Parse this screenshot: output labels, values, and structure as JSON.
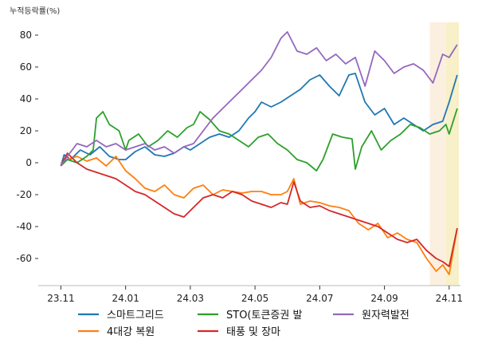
{
  "chart_data": {
    "type": "line",
    "ylabel": "누적등락률(%)",
    "xlabel": "",
    "title": "",
    "ylim": [
      -77,
      88
    ],
    "yticks": [
      80,
      60,
      40,
      20,
      0,
      -20,
      -40,
      -60
    ],
    "xticks": [
      {
        "label": "23.11",
        "x": 0
      },
      {
        "label": "24.01",
        "x": 2
      },
      {
        "label": "24.03",
        "x": 4
      },
      {
        "label": "24.05",
        "x": 6
      },
      {
        "label": "24.07",
        "x": 8
      },
      {
        "label": "24.09",
        "x": 10
      },
      {
        "label": "24.11",
        "x": 12
      }
    ],
    "xlim": [
      -0.7,
      12.35
    ],
    "x_unit": "months since 2023-11",
    "highlights": [
      {
        "from": 11.4,
        "to": 11.9,
        "color": "#fbefe0"
      },
      {
        "from": 11.9,
        "to": 12.3,
        "color": "#f7f0c8"
      }
    ],
    "legend_placement": "bottom",
    "grid": false,
    "series": [
      {
        "name": "스마트그리드",
        "color": "#1f77b4",
        "x": [
          0,
          0.1,
          0.3,
          0.6,
          0.9,
          1.2,
          1.5,
          1.8,
          2.0,
          2.3,
          2.6,
          2.9,
          3.2,
          3.5,
          3.8,
          4.0,
          4.3,
          4.6,
          4.9,
          5.2,
          5.5,
          5.8,
          6.0,
          6.2,
          6.5,
          6.8,
          7.1,
          7.4,
          7.7,
          8.0,
          8.3,
          8.6,
          8.9,
          9.1,
          9.4,
          9.7,
          10.0,
          10.3,
          10.6,
          10.9,
          11.2,
          11.5,
          11.8,
          12.0,
          12.25
        ],
        "values": [
          -2,
          5,
          2,
          8,
          5,
          10,
          4,
          2,
          2,
          7,
          10,
          5,
          4,
          6,
          10,
          8,
          12,
          16,
          18,
          16,
          20,
          28,
          32,
          38,
          35,
          38,
          42,
          46,
          52,
          55,
          48,
          42,
          55,
          56,
          38,
          30,
          34,
          24,
          28,
          24,
          20,
          24,
          26,
          38,
          55
        ]
      },
      {
        "name": "4대강 복원",
        "color": "#ff7f0e",
        "x": [
          0,
          0.2,
          0.5,
          0.8,
          1.1,
          1.4,
          1.7,
          2.0,
          2.3,
          2.6,
          2.9,
          3.2,
          3.5,
          3.8,
          4.1,
          4.4,
          4.7,
          5.0,
          5.3,
          5.6,
          5.9,
          6.2,
          6.5,
          6.8,
          7.0,
          7.2,
          7.4,
          7.7,
          8.0,
          8.3,
          8.6,
          8.9,
          9.2,
          9.5,
          9.8,
          10.1,
          10.4,
          10.7,
          11.0,
          11.3,
          11.6,
          11.8,
          12.0,
          12.25
        ],
        "values": [
          0,
          2,
          4,
          1,
          3,
          -2,
          4,
          -5,
          -10,
          -16,
          -18,
          -14,
          -20,
          -22,
          -16,
          -14,
          -20,
          -17,
          -18,
          -19,
          -18,
          -18,
          -20,
          -20,
          -18,
          -10,
          -26,
          -24,
          -25,
          -27,
          -28,
          -30,
          -38,
          -42,
          -38,
          -47,
          -44,
          -48,
          -50,
          -60,
          -68,
          -64,
          -70,
          -41
        ]
      },
      {
        "name": "STO(토큰증권 발",
        "color": "#2ca02c",
        "x": [
          0,
          0.2,
          0.5,
          0.8,
          1.0,
          1.1,
          1.3,
          1.5,
          1.8,
          2.0,
          2.1,
          2.4,
          2.7,
          3.0,
          3.3,
          3.6,
          3.9,
          4.1,
          4.3,
          4.6,
          4.9,
          5.2,
          5.5,
          5.8,
          6.1,
          6.4,
          6.7,
          7.0,
          7.3,
          7.6,
          7.9,
          8.1,
          8.4,
          8.7,
          9.0,
          9.1,
          9.3,
          9.6,
          9.9,
          10.2,
          10.5,
          10.8,
          11.1,
          11.4,
          11.7,
          11.9,
          12.0,
          12.25
        ],
        "values": [
          -2,
          2,
          0,
          4,
          8,
          28,
          32,
          24,
          20,
          8,
          14,
          18,
          10,
          14,
          20,
          16,
          22,
          24,
          32,
          27,
          20,
          18,
          14,
          10,
          16,
          18,
          12,
          8,
          2,
          0,
          -5,
          2,
          18,
          16,
          15,
          -4,
          10,
          20,
          8,
          14,
          18,
          24,
          22,
          18,
          20,
          24,
          18,
          34
        ]
      },
      {
        "name": "태풍 및 장마",
        "color": "#d62728",
        "x": [
          0,
          0.2,
          0.5,
          0.8,
          1.1,
          1.4,
          1.7,
          2.0,
          2.3,
          2.6,
          2.9,
          3.2,
          3.5,
          3.8,
          4.1,
          4.4,
          4.7,
          5.0,
          5.3,
          5.6,
          5.9,
          6.2,
          6.5,
          6.8,
          7.0,
          7.2,
          7.4,
          7.7,
          8.0,
          8.3,
          8.6,
          8.9,
          9.2,
          9.5,
          9.8,
          10.1,
          10.4,
          10.7,
          11.0,
          11.3,
          11.6,
          11.8,
          12.0,
          12.25
        ],
        "values": [
          -2,
          6,
          0,
          -4,
          -6,
          -8,
          -10,
          -14,
          -18,
          -20,
          -24,
          -28,
          -32,
          -34,
          -28,
          -22,
          -20,
          -22,
          -18,
          -20,
          -24,
          -26,
          -28,
          -25,
          -26,
          -12,
          -24,
          -28,
          -27,
          -30,
          -32,
          -34,
          -36,
          -38,
          -40,
          -44,
          -48,
          -50,
          -48,
          -55,
          -60,
          -62,
          -65,
          -41
        ]
      },
      {
        "name": "원자력발전",
        "color": "#9467bd",
        "x": [
          0,
          0.2,
          0.5,
          0.8,
          1.1,
          1.4,
          1.7,
          2.0,
          2.3,
          2.6,
          2.9,
          3.2,
          3.5,
          3.8,
          4.1,
          4.4,
          4.7,
          5.0,
          5.3,
          5.6,
          5.9,
          6.2,
          6.5,
          6.8,
          7.0,
          7.3,
          7.6,
          7.9,
          8.2,
          8.5,
          8.8,
          9.1,
          9.4,
          9.7,
          10.0,
          10.3,
          10.6,
          10.9,
          11.2,
          11.5,
          11.8,
          12.0,
          12.25
        ],
        "values": [
          -2,
          4,
          12,
          10,
          14,
          10,
          12,
          8,
          10,
          12,
          8,
          10,
          6,
          10,
          12,
          20,
          28,
          34,
          40,
          46,
          52,
          58,
          66,
          78,
          82,
          70,
          68,
          72,
          64,
          68,
          62,
          66,
          48,
          70,
          64,
          56,
          60,
          62,
          58,
          50,
          68,
          66,
          74
        ]
      }
    ]
  }
}
